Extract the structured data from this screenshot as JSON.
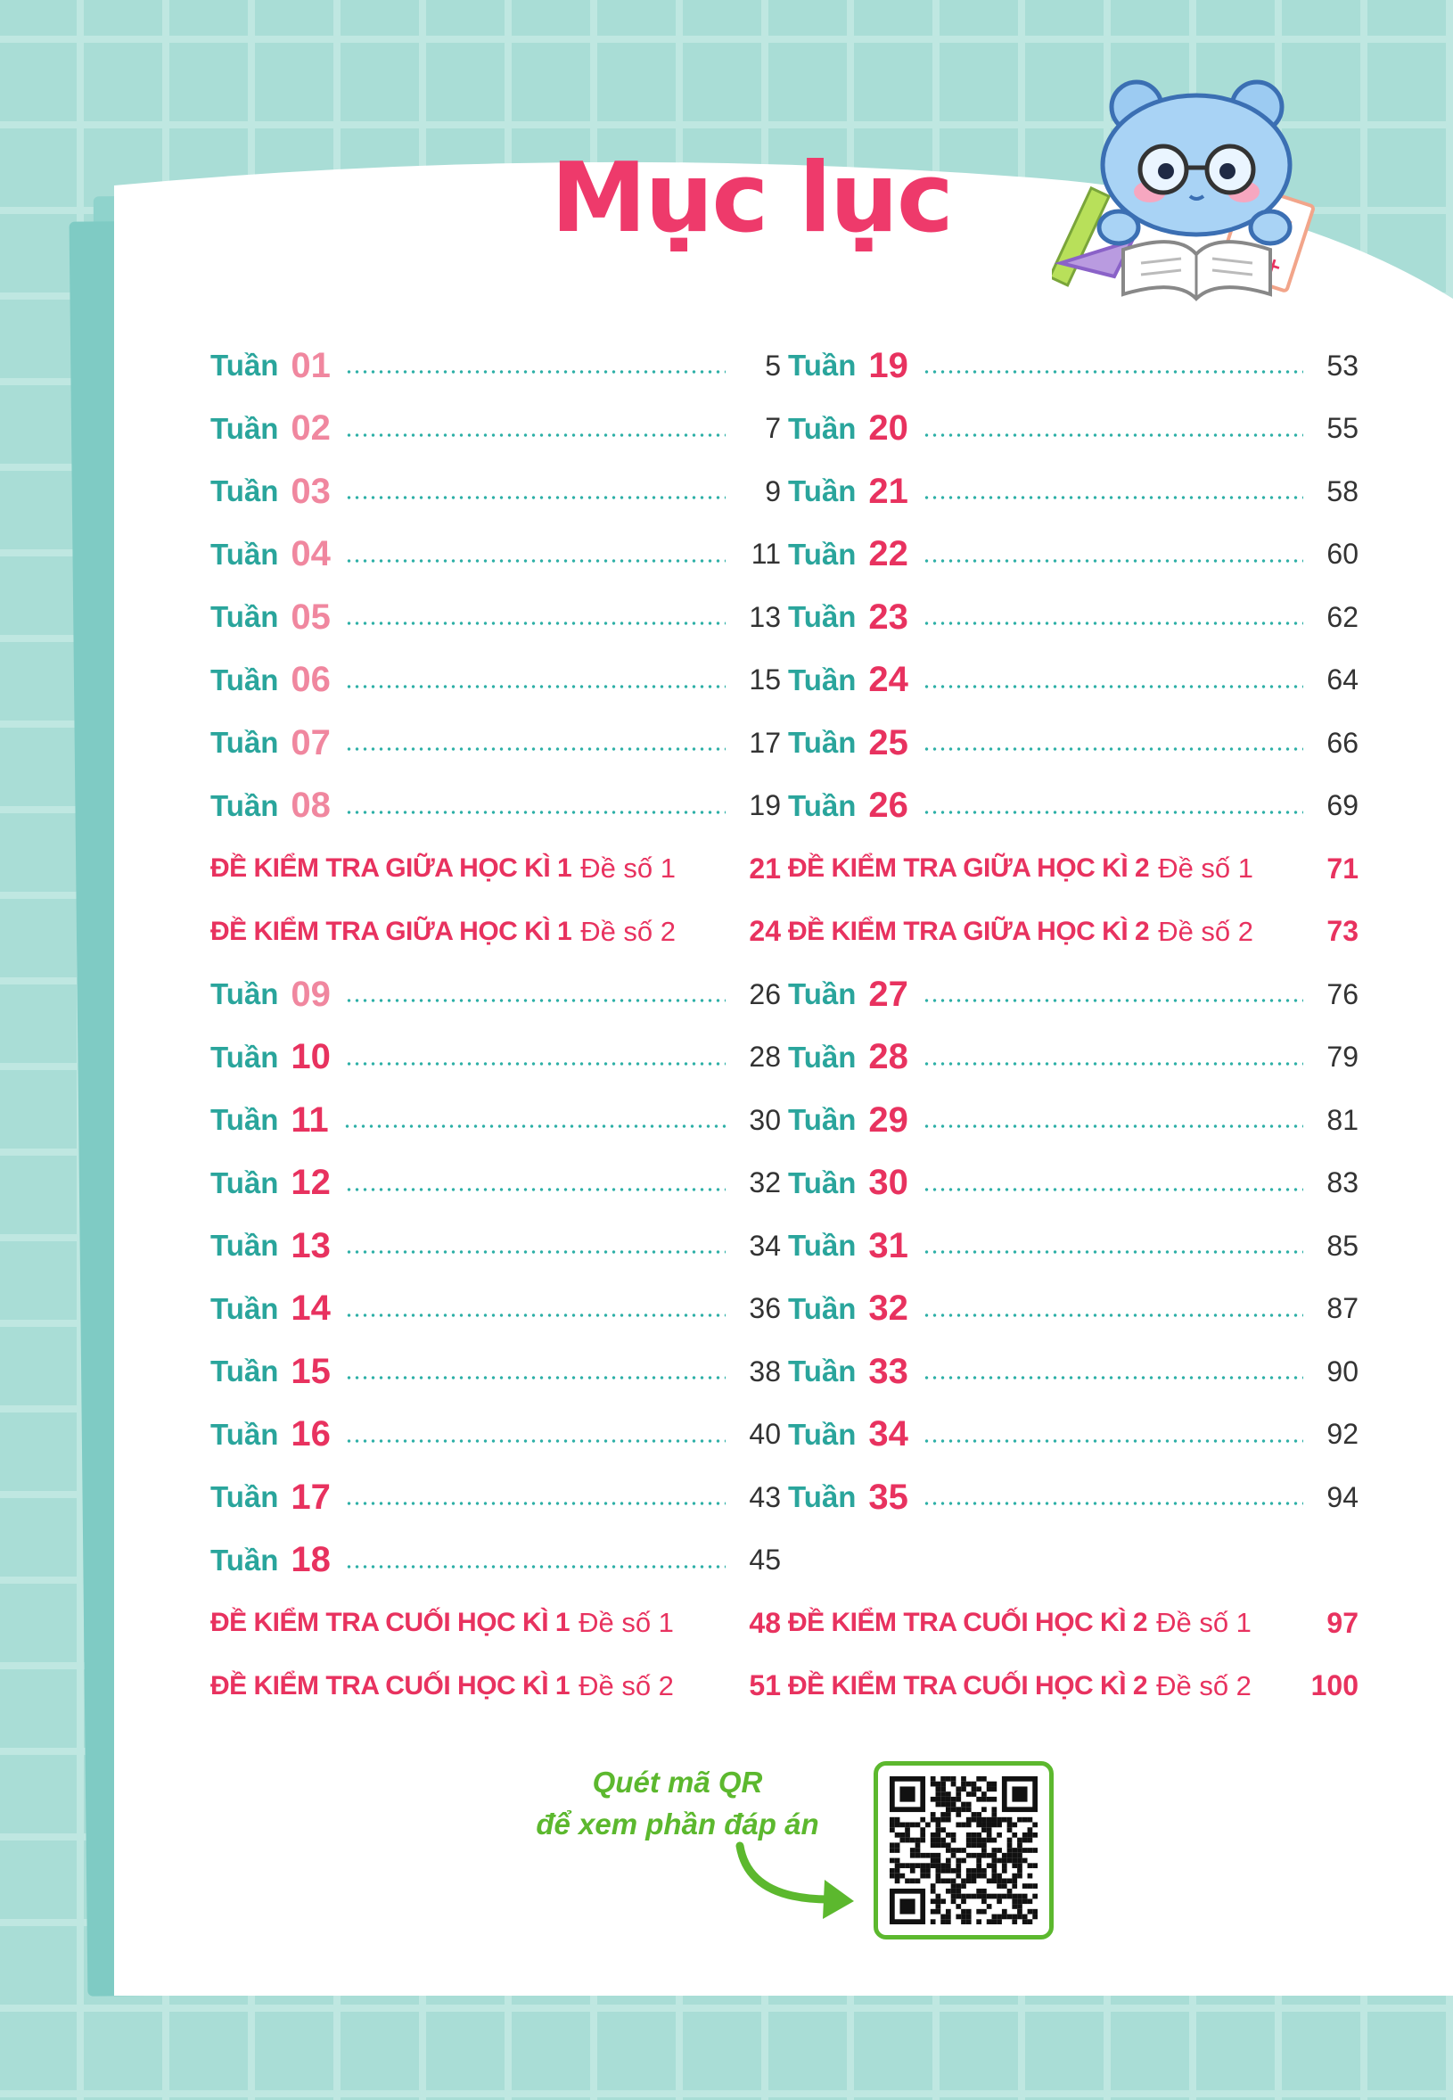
{
  "title": "Mục lục",
  "left_column": [
    {
      "type": "week",
      "label": "Tuần",
      "num": "01",
      "style": "light",
      "page": "5"
    },
    {
      "type": "week",
      "label": "Tuần",
      "num": "02",
      "style": "light",
      "page": "7"
    },
    {
      "type": "week",
      "label": "Tuần",
      "num": "03",
      "style": "light",
      "page": "9"
    },
    {
      "type": "week",
      "label": "Tuần",
      "num": "04",
      "style": "light",
      "page": "11"
    },
    {
      "type": "week",
      "label": "Tuần",
      "num": "05",
      "style": "light",
      "page": "13"
    },
    {
      "type": "week",
      "label": "Tuần",
      "num": "06",
      "style": "light",
      "page": "15"
    },
    {
      "type": "week",
      "label": "Tuần",
      "num": "07",
      "style": "light",
      "page": "17"
    },
    {
      "type": "week",
      "label": "Tuần",
      "num": "08",
      "style": "light",
      "page": "19"
    },
    {
      "type": "exam",
      "title": "ĐỀ KIỂM TRA GIỮA HỌC KÌ 1",
      "sub": "Đề số 1",
      "page": "21"
    },
    {
      "type": "exam",
      "title": "ĐỀ KIỂM TRA GIỮA HỌC KÌ 1",
      "sub": "Đề số 2",
      "page": "24"
    },
    {
      "type": "week",
      "label": "Tuần",
      "num": "09",
      "style": "light",
      "page": "26"
    },
    {
      "type": "week",
      "label": "Tuần",
      "num": "10",
      "style": "dark",
      "page": "28"
    },
    {
      "type": "week",
      "label": "Tuần",
      "num": "11",
      "style": "dark",
      "page": "30"
    },
    {
      "type": "week",
      "label": "Tuần",
      "num": "12",
      "style": "dark",
      "page": "32"
    },
    {
      "type": "week",
      "label": "Tuần",
      "num": "13",
      "style": "dark",
      "page": "34"
    },
    {
      "type": "week",
      "label": "Tuần",
      "num": "14",
      "style": "dark",
      "page": "36"
    },
    {
      "type": "week",
      "label": "Tuần",
      "num": "15",
      "style": "dark",
      "page": "38"
    },
    {
      "type": "week",
      "label": "Tuần",
      "num": "16",
      "style": "dark",
      "page": "40"
    },
    {
      "type": "week",
      "label": "Tuần",
      "num": "17",
      "style": "dark",
      "page": "43"
    },
    {
      "type": "week",
      "label": "Tuần",
      "num": "18",
      "style": "dark",
      "page": "45"
    },
    {
      "type": "exam",
      "title": "ĐỀ KIỂM TRA CUỐI HỌC KÌ 1",
      "sub": "Đề số 1",
      "page": "48"
    },
    {
      "type": "exam",
      "title": "ĐỀ KIỂM TRA CUỐI HỌC KÌ 1",
      "sub": "Đề số 2",
      "page": "51"
    }
  ],
  "right_column": [
    {
      "type": "week",
      "label": "Tuần",
      "num": "19",
      "style": "dark",
      "page": "53"
    },
    {
      "type": "week",
      "label": "Tuần",
      "num": "20",
      "style": "dark",
      "page": "55"
    },
    {
      "type": "week",
      "label": "Tuần",
      "num": "21",
      "style": "dark",
      "page": "58"
    },
    {
      "type": "week",
      "label": "Tuần",
      "num": "22",
      "style": "dark",
      "page": "60"
    },
    {
      "type": "week",
      "label": "Tuần",
      "num": "23",
      "style": "dark",
      "page": "62"
    },
    {
      "type": "week",
      "label": "Tuần",
      "num": "24",
      "style": "dark",
      "page": "64"
    },
    {
      "type": "week",
      "label": "Tuần",
      "num": "25",
      "style": "dark",
      "page": "66"
    },
    {
      "type": "week",
      "label": "Tuần",
      "num": "26",
      "style": "dark",
      "page": "69"
    },
    {
      "type": "exam",
      "title": "ĐỀ KIỂM TRA GIỮA HỌC KÌ 2",
      "sub": "Đề số 1",
      "page": "71"
    },
    {
      "type": "exam",
      "title": "ĐỀ KIỂM TRA GIỮA HỌC KÌ 2",
      "sub": "Đề số 2",
      "page": "73"
    },
    {
      "type": "week",
      "label": "Tuần",
      "num": "27",
      "style": "dark",
      "page": "76"
    },
    {
      "type": "week",
      "label": "Tuần",
      "num": "28",
      "style": "dark",
      "page": "79"
    },
    {
      "type": "week",
      "label": "Tuần",
      "num": "29",
      "style": "dark",
      "page": "81"
    },
    {
      "type": "week",
      "label": "Tuần",
      "num": "30",
      "style": "dark",
      "page": "83"
    },
    {
      "type": "week",
      "label": "Tuần",
      "num": "31",
      "style": "dark",
      "page": "85"
    },
    {
      "type": "week",
      "label": "Tuần",
      "num": "32",
      "style": "dark",
      "page": "87"
    },
    {
      "type": "week",
      "label": "Tuần",
      "num": "33",
      "style": "dark",
      "page": "90"
    },
    {
      "type": "week",
      "label": "Tuần",
      "num": "34",
      "style": "dark",
      "page": "92"
    },
    {
      "type": "week",
      "label": "Tuần",
      "num": "35",
      "style": "dark",
      "page": "94"
    },
    {
      "type": "empty"
    },
    {
      "type": "exam",
      "title": "ĐỀ KIỂM TRA CUỐI HỌC KÌ 2",
      "sub": "Đề số 1",
      "page": "97"
    },
    {
      "type": "exam",
      "title": "ĐỀ KIỂM TRA CUỐI HỌC KÌ 2",
      "sub": "Đề số 2",
      "page": "100"
    }
  ],
  "qr": {
    "line1": "Quét mã QR",
    "line2": "để xem phần đáp án"
  },
  "colors": {
    "accent_pink": "#e8325f",
    "light_pink": "#f0879f",
    "teal": "#2aa59c",
    "green": "#5cb82e",
    "background": "#a9ddd6"
  },
  "icons": [
    "bear-mascot-icon",
    "ruler-icon",
    "open-book-icon",
    "test-paper-icon",
    "curved-arrow-icon",
    "qr-code-icon"
  ]
}
